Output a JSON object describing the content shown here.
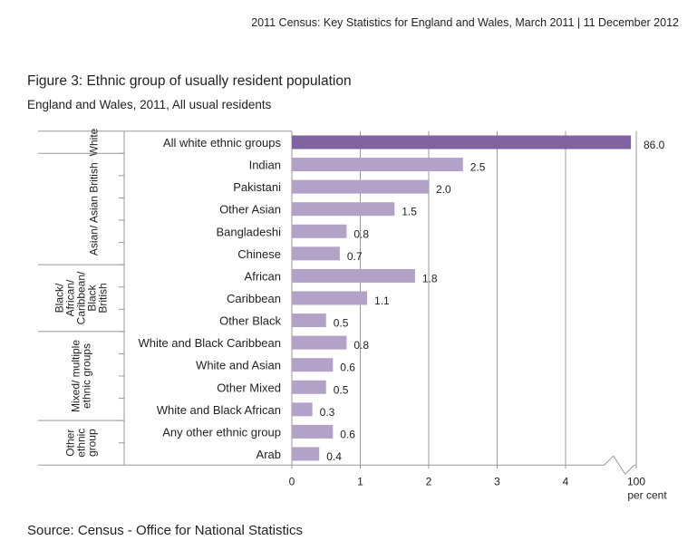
{
  "header": "2011 Census: Key Statistics for England and Wales, March 2011 | 11 December 2012",
  "source": "Source: Census - Office for National Statistics",
  "chart_data": {
    "type": "bar",
    "orientation": "horizontal",
    "title": "Figure 3: Ethnic group of usually resident population",
    "subtitle": "England and Wales, 2011, All usual residents",
    "categories": [
      "All white ethnic groups",
      "Indian",
      "Pakistani",
      "Other Asian",
      "Bangladeshi",
      "Chinese",
      "African",
      "Caribbean",
      "Other Black",
      "White and Black Caribbean",
      "White and Asian",
      "Other Mixed",
      "White and Black African",
      "Any other ethnic group",
      "Arab"
    ],
    "values": [
      86.0,
      2.5,
      2.0,
      1.5,
      0.8,
      0.7,
      1.8,
      1.1,
      0.5,
      0.8,
      0.6,
      0.5,
      0.3,
      0.6,
      0.4
    ],
    "value_labels": [
      "86.0",
      "2.5",
      "2.0",
      "1.5",
      "0.8",
      "0.7",
      "1.8",
      "1.1",
      "0.5",
      "0.8",
      "0.6",
      "0.5",
      "0.3",
      "0.6",
      "0.4"
    ],
    "colors": [
      "#8064a2",
      "#b3a2c7",
      "#b3a2c7",
      "#b3a2c7",
      "#b3a2c7",
      "#b3a2c7",
      "#b3a2c7",
      "#b3a2c7",
      "#b3a2c7",
      "#b3a2c7",
      "#b3a2c7",
      "#b3a2c7",
      "#b3a2c7",
      "#b3a2c7",
      "#b3a2c7"
    ],
    "groups": [
      {
        "label": [
          "White"
        ],
        "size": 1
      },
      {
        "label": [
          "Asian/ Asian British"
        ],
        "size": 5
      },
      {
        "label": [
          "Black/",
          "African/",
          "Caribbean/",
          "Black",
          "British"
        ],
        "size": 3
      },
      {
        "label": [
          "Mixed/ multiple",
          "ethnic groups"
        ],
        "size": 4
      },
      {
        "label": [
          "Other",
          "ethnic",
          "group"
        ],
        "size": 2
      }
    ],
    "xlim": [
      0,
      100
    ],
    "xticks": [
      0,
      1,
      2,
      3,
      4,
      100
    ],
    "axis_break": [
      4.5,
      100
    ],
    "xlabel": "per cent",
    "grid": true
  }
}
